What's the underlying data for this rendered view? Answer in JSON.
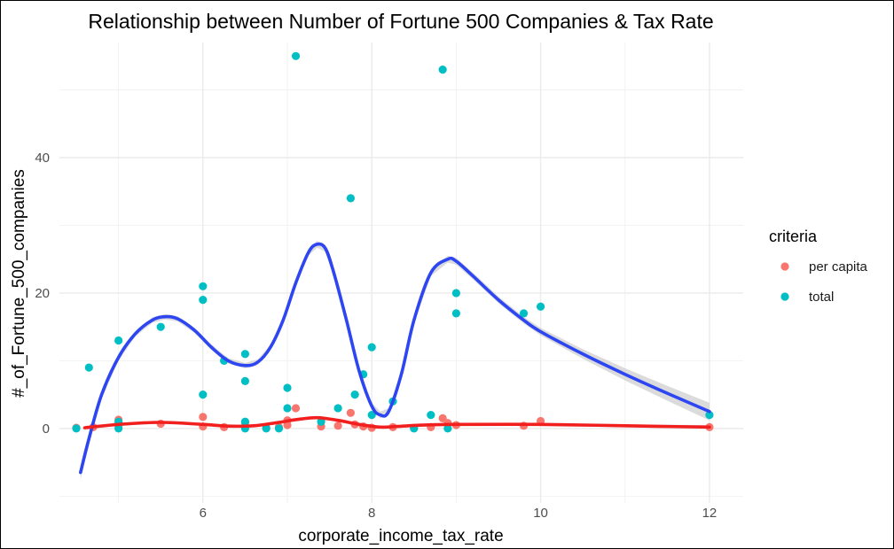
{
  "chart_data": {
    "type": "scatter",
    "title": "Relationship between Number of Fortune 500 Companies & Tax Rate",
    "xlabel": "corporate_income_tax_rate",
    "ylabel": "#_of_Fortune_500_companies",
    "xlim": [
      4.3,
      12.4
    ],
    "ylim": [
      -11,
      57
    ],
    "x_ticks": [
      6,
      8,
      10,
      12
    ],
    "y_ticks": [
      0,
      20,
      40
    ],
    "grid": true,
    "legend": {
      "title": "criteria",
      "position": "right",
      "entries": [
        {
          "label": "per capita",
          "color": "#F8766D"
        },
        {
          "label": "total",
          "color": "#00BFC4"
        }
      ]
    },
    "series": [
      {
        "name": "per capita",
        "color": "#F8766D",
        "points": [
          [
            4.5,
            0.1
          ],
          [
            4.7,
            0.2
          ],
          [
            5.0,
            0.4
          ],
          [
            5.0,
            1.3
          ],
          [
            5.5,
            0.7
          ],
          [
            6.0,
            0.3
          ],
          [
            6.0,
            1.7
          ],
          [
            6.25,
            0.2
          ],
          [
            6.5,
            0.3
          ],
          [
            6.5,
            0.9
          ],
          [
            6.75,
            0.1
          ],
          [
            6.9,
            0.2
          ],
          [
            7.0,
            0.5
          ],
          [
            7.0,
            1.2
          ],
          [
            7.1,
            3.0
          ],
          [
            7.4,
            0.3
          ],
          [
            7.6,
            0.4
          ],
          [
            7.75,
            2.3
          ],
          [
            7.8,
            0.6
          ],
          [
            7.9,
            0.3
          ],
          [
            8.0,
            0.1
          ],
          [
            8.25,
            0.2
          ],
          [
            8.5,
            0.1
          ],
          [
            8.7,
            0.2
          ],
          [
            8.84,
            1.5
          ],
          [
            8.9,
            0.8
          ],
          [
            9.0,
            0.5
          ],
          [
            9.8,
            0.4
          ],
          [
            10.0,
            1.1
          ],
          [
            12.0,
            0.2
          ]
        ]
      },
      {
        "name": "total",
        "color": "#00BFC4",
        "points": [
          [
            4.5,
            0
          ],
          [
            4.65,
            9
          ],
          [
            5.0,
            13
          ],
          [
            5.0,
            0
          ],
          [
            5.0,
            1
          ],
          [
            5.5,
            15
          ],
          [
            6.0,
            21
          ],
          [
            6.0,
            19
          ],
          [
            6.0,
            5
          ],
          [
            6.25,
            10
          ],
          [
            6.5,
            11
          ],
          [
            6.5,
            7
          ],
          [
            6.5,
            1
          ],
          [
            6.5,
            0
          ],
          [
            6.75,
            0
          ],
          [
            6.9,
            0
          ],
          [
            7.0,
            6
          ],
          [
            7.0,
            3
          ],
          [
            7.1,
            55
          ],
          [
            7.4,
            1
          ],
          [
            7.6,
            3
          ],
          [
            7.75,
            34
          ],
          [
            7.8,
            5
          ],
          [
            7.9,
            8
          ],
          [
            8.0,
            12
          ],
          [
            8.0,
            2
          ],
          [
            8.25,
            4
          ],
          [
            8.5,
            0
          ],
          [
            8.7,
            2
          ],
          [
            8.84,
            53
          ],
          [
            8.9,
            0
          ],
          [
            9.0,
            20
          ],
          [
            9.0,
            17
          ],
          [
            9.8,
            17
          ],
          [
            10.0,
            18
          ],
          [
            12.0,
            2
          ]
        ]
      }
    ],
    "smooth_lines": [
      {
        "series": "total",
        "color": "#2d46f2",
        "band_color": "#cccccc",
        "points": [
          [
            4.55,
            -6.5
          ],
          [
            4.65,
            -1.5
          ],
          [
            4.8,
            5
          ],
          [
            5.0,
            10.5
          ],
          [
            5.2,
            14
          ],
          [
            5.4,
            16
          ],
          [
            5.55,
            16.5
          ],
          [
            5.7,
            16.2
          ],
          [
            5.9,
            14.5
          ],
          [
            6.1,
            12
          ],
          [
            6.3,
            10
          ],
          [
            6.5,
            9.3
          ],
          [
            6.65,
            9.8
          ],
          [
            6.8,
            12
          ],
          [
            6.95,
            16
          ],
          [
            7.1,
            21.5
          ],
          [
            7.25,
            26
          ],
          [
            7.35,
            27.2
          ],
          [
            7.45,
            26.6
          ],
          [
            7.55,
            23
          ],
          [
            7.7,
            16
          ],
          [
            7.85,
            8.5
          ],
          [
            8.0,
            3.3
          ],
          [
            8.1,
            2
          ],
          [
            8.2,
            2.5
          ],
          [
            8.35,
            8
          ],
          [
            8.5,
            16
          ],
          [
            8.7,
            23
          ],
          [
            8.9,
            25
          ],
          [
            9.0,
            24.7
          ],
          [
            9.2,
            22.5
          ],
          [
            9.5,
            19
          ],
          [
            9.8,
            16
          ],
          [
            10.0,
            14.3
          ],
          [
            10.5,
            11
          ],
          [
            11.0,
            8
          ],
          [
            11.5,
            5.2
          ],
          [
            12.0,
            2.5
          ]
        ],
        "band_halfwidth": [
          1.0,
          0.8,
          0.6,
          0.5,
          0.4,
          0.4,
          0.4,
          0.4,
          0.4,
          0.4,
          0.4,
          0.4,
          0.4,
          0.4,
          0.4,
          0.5,
          0.5,
          0.5,
          0.5,
          0.5,
          0.5,
          0.5,
          0.5,
          0.5,
          0.5,
          0.5,
          0.5,
          0.5,
          0.5,
          0.5,
          0.5,
          0.5,
          0.5,
          0.55,
          0.7,
          0.9,
          1.1,
          1.3
        ]
      },
      {
        "series": "per capita",
        "color": "#f21f1f",
        "band_color": "#cccccc",
        "points": [
          [
            4.6,
            0.1
          ],
          [
            5.0,
            0.6
          ],
          [
            5.5,
            0.9
          ],
          [
            6.0,
            0.6
          ],
          [
            6.3,
            0.35
          ],
          [
            6.6,
            0.4
          ],
          [
            6.9,
            0.9
          ],
          [
            7.1,
            1.3
          ],
          [
            7.35,
            1.6
          ],
          [
            7.6,
            1.2
          ],
          [
            7.85,
            0.6
          ],
          [
            8.1,
            0.2
          ],
          [
            8.3,
            0.3
          ],
          [
            8.6,
            0.5
          ],
          [
            9.0,
            0.6
          ],
          [
            10.0,
            0.6
          ],
          [
            11.0,
            0.4
          ],
          [
            12.0,
            0.2
          ]
        ],
        "band_halfwidth": [
          0.3,
          0.2,
          0.2,
          0.2,
          0.2,
          0.2,
          0.2,
          0.2,
          0.2,
          0.2,
          0.2,
          0.2,
          0.2,
          0.2,
          0.2,
          0.2,
          0.2,
          0.3
        ]
      }
    ]
  }
}
